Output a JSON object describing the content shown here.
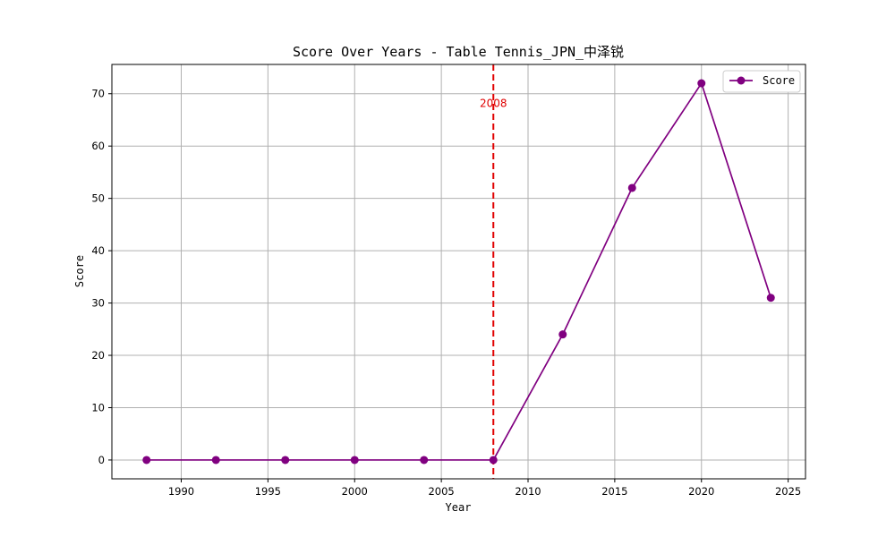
{
  "chart_data": {
    "type": "line",
    "title": "Score Over Years - Table Tennis_JPN_中泽锐",
    "xlabel": "Year",
    "ylabel": "Score",
    "xlim": [
      1986,
      2026
    ],
    "ylim": [
      -3.6,
      75.6
    ],
    "xticks": [
      1990,
      1995,
      2000,
      2005,
      2010,
      2015,
      2020,
      2025
    ],
    "yticks": [
      0,
      10,
      20,
      30,
      40,
      50,
      60,
      70
    ],
    "grid": true,
    "legend_position": "top-right",
    "series": [
      {
        "name": "Score",
        "color": "#800080",
        "marker": "circle",
        "x": [
          1988,
          1992,
          1996,
          2000,
          2004,
          2008,
          2012,
          2016,
          2020,
          2024
        ],
        "y": [
          0,
          0,
          0,
          0,
          0,
          0,
          24,
          52,
          72,
          31
        ]
      }
    ],
    "annotations": [
      {
        "type": "vline",
        "x": 2008,
        "label": "2008",
        "color": "#e00000",
        "style": "dashed"
      }
    ]
  }
}
